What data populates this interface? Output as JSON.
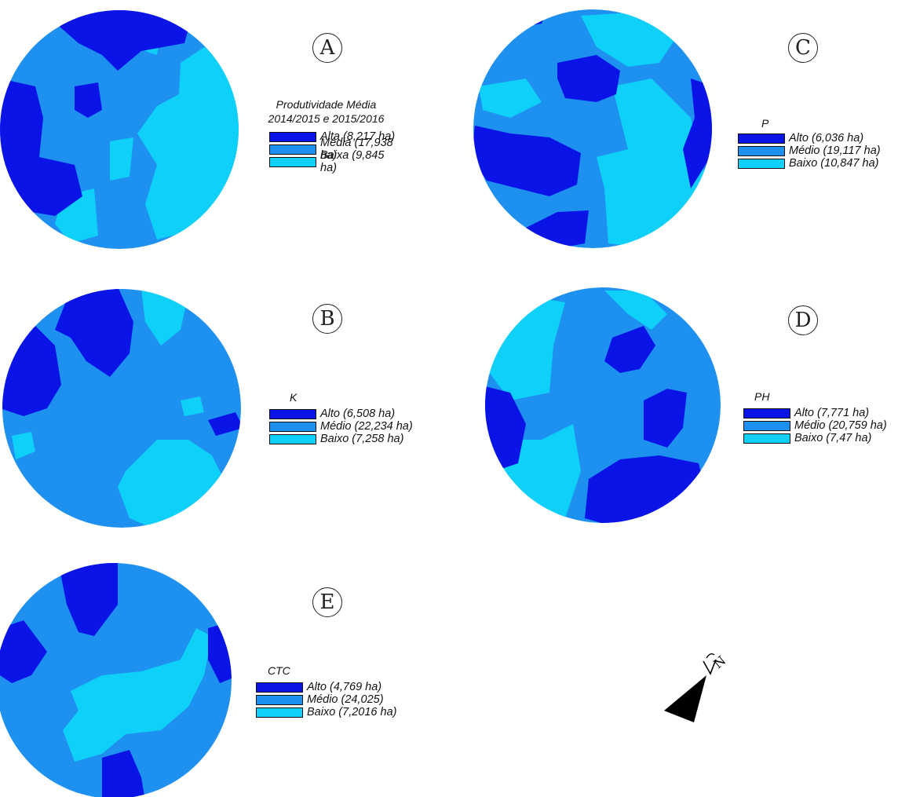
{
  "colors": {
    "high": "#0a14e6",
    "medium": "#1e90f0",
    "low": "#0fd0f8"
  },
  "panels": [
    {
      "id": "A",
      "letter": "A",
      "title_lines": [
        "Produtividade Média",
        "2014/2015 e 2015/2016"
      ],
      "legend": [
        "Alta (8,217 ha)",
        "Média (17,938 ha)",
        "Baixa (9,845 ha)"
      ]
    },
    {
      "id": "B",
      "letter": "B",
      "title_lines": [
        "K"
      ],
      "legend": [
        "Alto (6,508 ha)",
        "Médio (22,234 ha)",
        "Baixo (7,258 ha)"
      ]
    },
    {
      "id": "C",
      "letter": "C",
      "title_lines": [
        "P"
      ],
      "legend": [
        "Alto (6,036 ha)",
        "Médio (19,117 ha)",
        "Baixo (10,847 ha)"
      ]
    },
    {
      "id": "D",
      "letter": "D",
      "title_lines": [
        "PH"
      ],
      "legend": [
        "Alto (7,771 ha)",
        "Médio (20,759 ha)",
        "Baixo (7,47 ha)"
      ]
    },
    {
      "id": "E",
      "letter": "E",
      "title_lines": [
        "CTC"
      ],
      "legend": [
        "Alto (4,769 ha)",
        "Médio (24,025)",
        "Baixo (7,2016 ha)"
      ]
    }
  ],
  "north_arrow": {
    "label": "N",
    "icon": "north-arrow-icon"
  }
}
